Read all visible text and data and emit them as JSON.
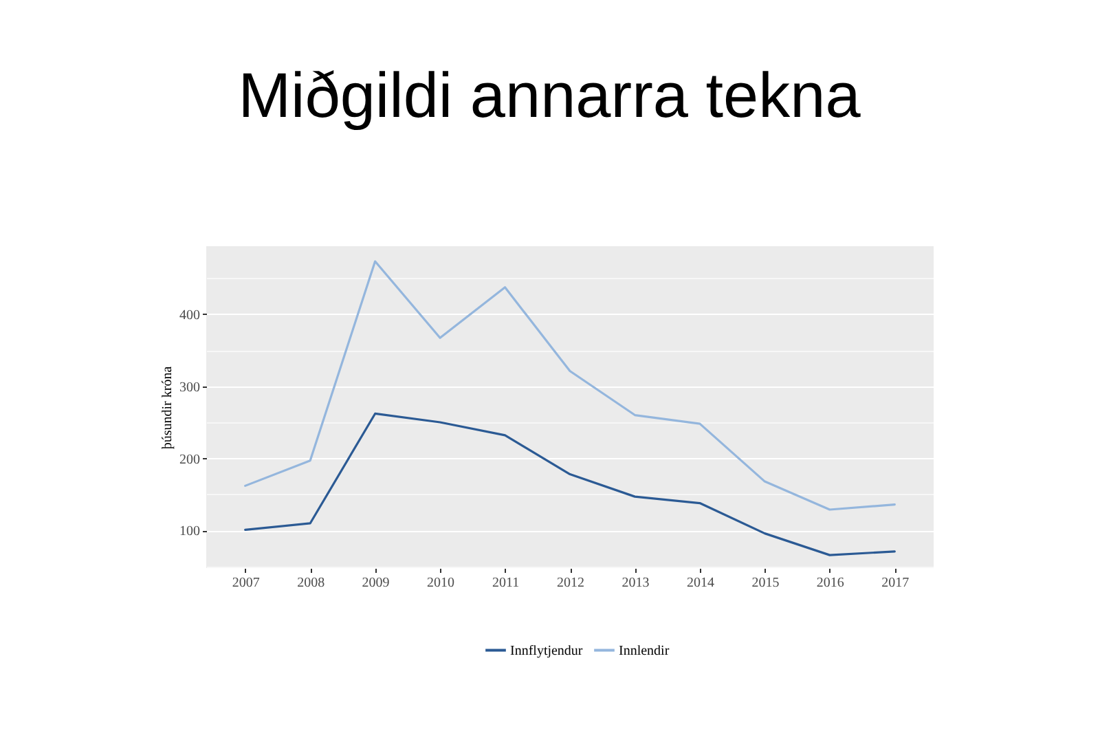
{
  "chart_data": {
    "type": "line",
    "title": "Miðgildi annarra tekna",
    "ylabel": "þúsundir króna",
    "x": [
      2007,
      2008,
      2009,
      2010,
      2011,
      2012,
      2013,
      2014,
      2015,
      2016,
      2017
    ],
    "series": [
      {
        "name": "Innflytjendur",
        "color": "#2b5a94",
        "values": [
          101,
          110,
          262,
          250,
          232,
          178,
          147,
          138,
          96,
          66,
          71
        ]
      },
      {
        "name": "Innlendir",
        "color": "#94b6dd",
        "values": [
          162,
          197,
          473,
          367,
          437,
          321,
          260,
          248,
          168,
          129,
          136
        ]
      }
    ],
    "xlim": [
      2006.4,
      2017.6
    ],
    "xticks": [
      2007,
      2008,
      2009,
      2010,
      2011,
      2012,
      2013,
      2014,
      2015,
      2016,
      2017
    ],
    "ylim": [
      48,
      494
    ],
    "yticks": [
      {
        "value": 50,
        "label": null
      },
      100,
      {
        "value": 150,
        "label": null
      },
      200,
      {
        "value": 250,
        "label": null
      },
      300,
      {
        "value": 350,
        "label": null
      },
      400,
      {
        "value": 450,
        "label": null
      }
    ],
    "grid": "y",
    "legend": "bottom"
  }
}
